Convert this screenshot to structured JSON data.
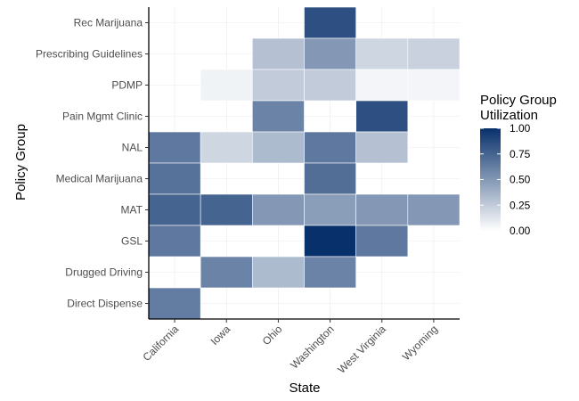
{
  "chart_data": {
    "type": "heatmap",
    "xlabel": "State",
    "ylabel": "Policy Group",
    "x_categories": [
      "California",
      "Iowa",
      "Ohio",
      "Washington",
      "West Virginia",
      "Wyoming"
    ],
    "y_categories": [
      "Rec Marijuana",
      "Prescribing Guidelines",
      "PDMP",
      "Pain Mgmt Clinic",
      "NAL",
      "Medical Marijuana",
      "MAT",
      "GSL",
      "Drugged Driving",
      "Direct Dispense"
    ],
    "values": [
      [
        null,
        null,
        null,
        0.85,
        null,
        null
      ],
      [
        null,
        null,
        0.3,
        0.5,
        0.2,
        0.22
      ],
      [
        null,
        0.06,
        0.25,
        0.25,
        0.05,
        0.05
      ],
      [
        null,
        null,
        0.6,
        null,
        0.85,
        null
      ],
      [
        0.65,
        0.2,
        0.33,
        0.65,
        0.3,
        null
      ],
      [
        0.68,
        null,
        null,
        0.7,
        null,
        null
      ],
      [
        0.75,
        0.75,
        0.5,
        0.47,
        0.5,
        0.5
      ],
      [
        0.65,
        null,
        null,
        1.0,
        0.65,
        null
      ],
      [
        null,
        0.6,
        0.33,
        0.6,
        null,
        null
      ],
      [
        0.63,
        null,
        null,
        null,
        null,
        null
      ]
    ],
    "legend": {
      "title": [
        "Policy Group",
        "Utilization"
      ],
      "ticks": [
        "1.00",
        "0.75",
        "0.50",
        "0.25",
        "0.00"
      ],
      "tick_values": [
        1.0,
        0.75,
        0.5,
        0.25,
        0.0
      ],
      "range": [
        0,
        1
      ]
    },
    "colors": {
      "low": "#ffffff",
      "high": "#08306b"
    },
    "grid": true
  }
}
